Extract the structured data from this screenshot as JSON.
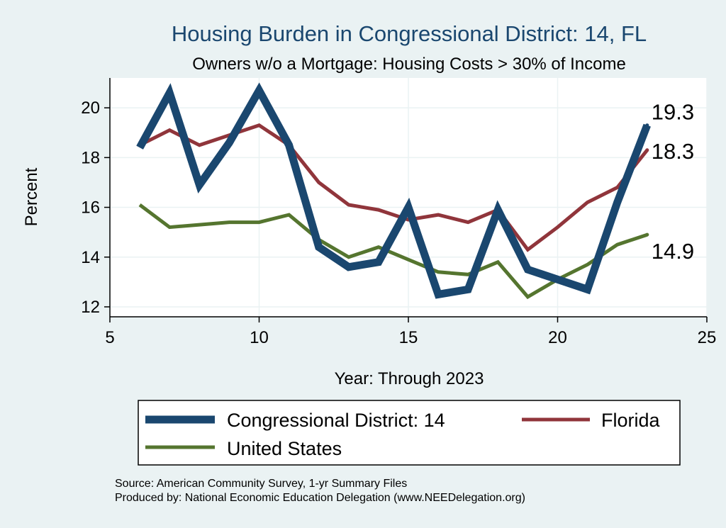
{
  "chart_data": {
    "type": "line",
    "title": "Housing Burden in Congressional District:  14, FL",
    "subtitle": "Owners w/o a Mortgage: Housing Costs > 30% of Income",
    "xlabel": "Year: Through 2023",
    "ylabel": "Percent",
    "xlim": [
      5,
      25
    ],
    "ylim": [
      11.6,
      21.2
    ],
    "xticks": [
      5,
      10,
      15,
      20,
      25
    ],
    "yticks": [
      12,
      14,
      16,
      18,
      20
    ],
    "grid": true,
    "legend_position": "bottom",
    "series": [
      {
        "name": "Congressional District:  14",
        "color": "#1a476f",
        "x": [
          6,
          7,
          8,
          9,
          10,
          11,
          12,
          13,
          14,
          15,
          16,
          17,
          18,
          19,
          20,
          21,
          22,
          23
        ],
        "values": [
          18.4,
          20.6,
          16.9,
          18.6,
          20.7,
          18.5,
          14.4,
          13.6,
          13.8,
          16.0,
          12.5,
          12.7,
          15.9,
          13.5,
          13.1,
          12.7,
          16.2,
          19.3
        ],
        "end_label": "19.3"
      },
      {
        "name": "Florida",
        "color": "#90353b",
        "x": [
          6,
          7,
          8,
          9,
          10,
          11,
          12,
          13,
          14,
          15,
          16,
          17,
          18,
          19,
          20,
          21,
          22,
          23
        ],
        "values": [
          18.5,
          19.1,
          18.5,
          18.9,
          19.3,
          18.5,
          17.0,
          16.1,
          15.9,
          15.5,
          15.7,
          15.4,
          15.9,
          14.3,
          15.2,
          16.2,
          16.8,
          18.3
        ],
        "end_label": "18.3"
      },
      {
        "name": "United States",
        "color": "#55752f",
        "x": [
          6,
          7,
          8,
          9,
          10,
          11,
          12,
          13,
          14,
          15,
          16,
          17,
          18,
          19,
          20,
          21,
          22,
          23
        ],
        "values": [
          16.1,
          15.2,
          15.3,
          15.4,
          15.4,
          15.7,
          14.7,
          14.0,
          14.4,
          13.9,
          13.4,
          13.3,
          13.8,
          12.4,
          13.1,
          13.7,
          14.5,
          14.9
        ],
        "end_label": "14.9"
      }
    ]
  },
  "source_line": "Source: American Community Survey, 1-yr Summary Files",
  "producer_line": "Produced by: National Economic Education Delegation (www.NEEDelegation.org)"
}
